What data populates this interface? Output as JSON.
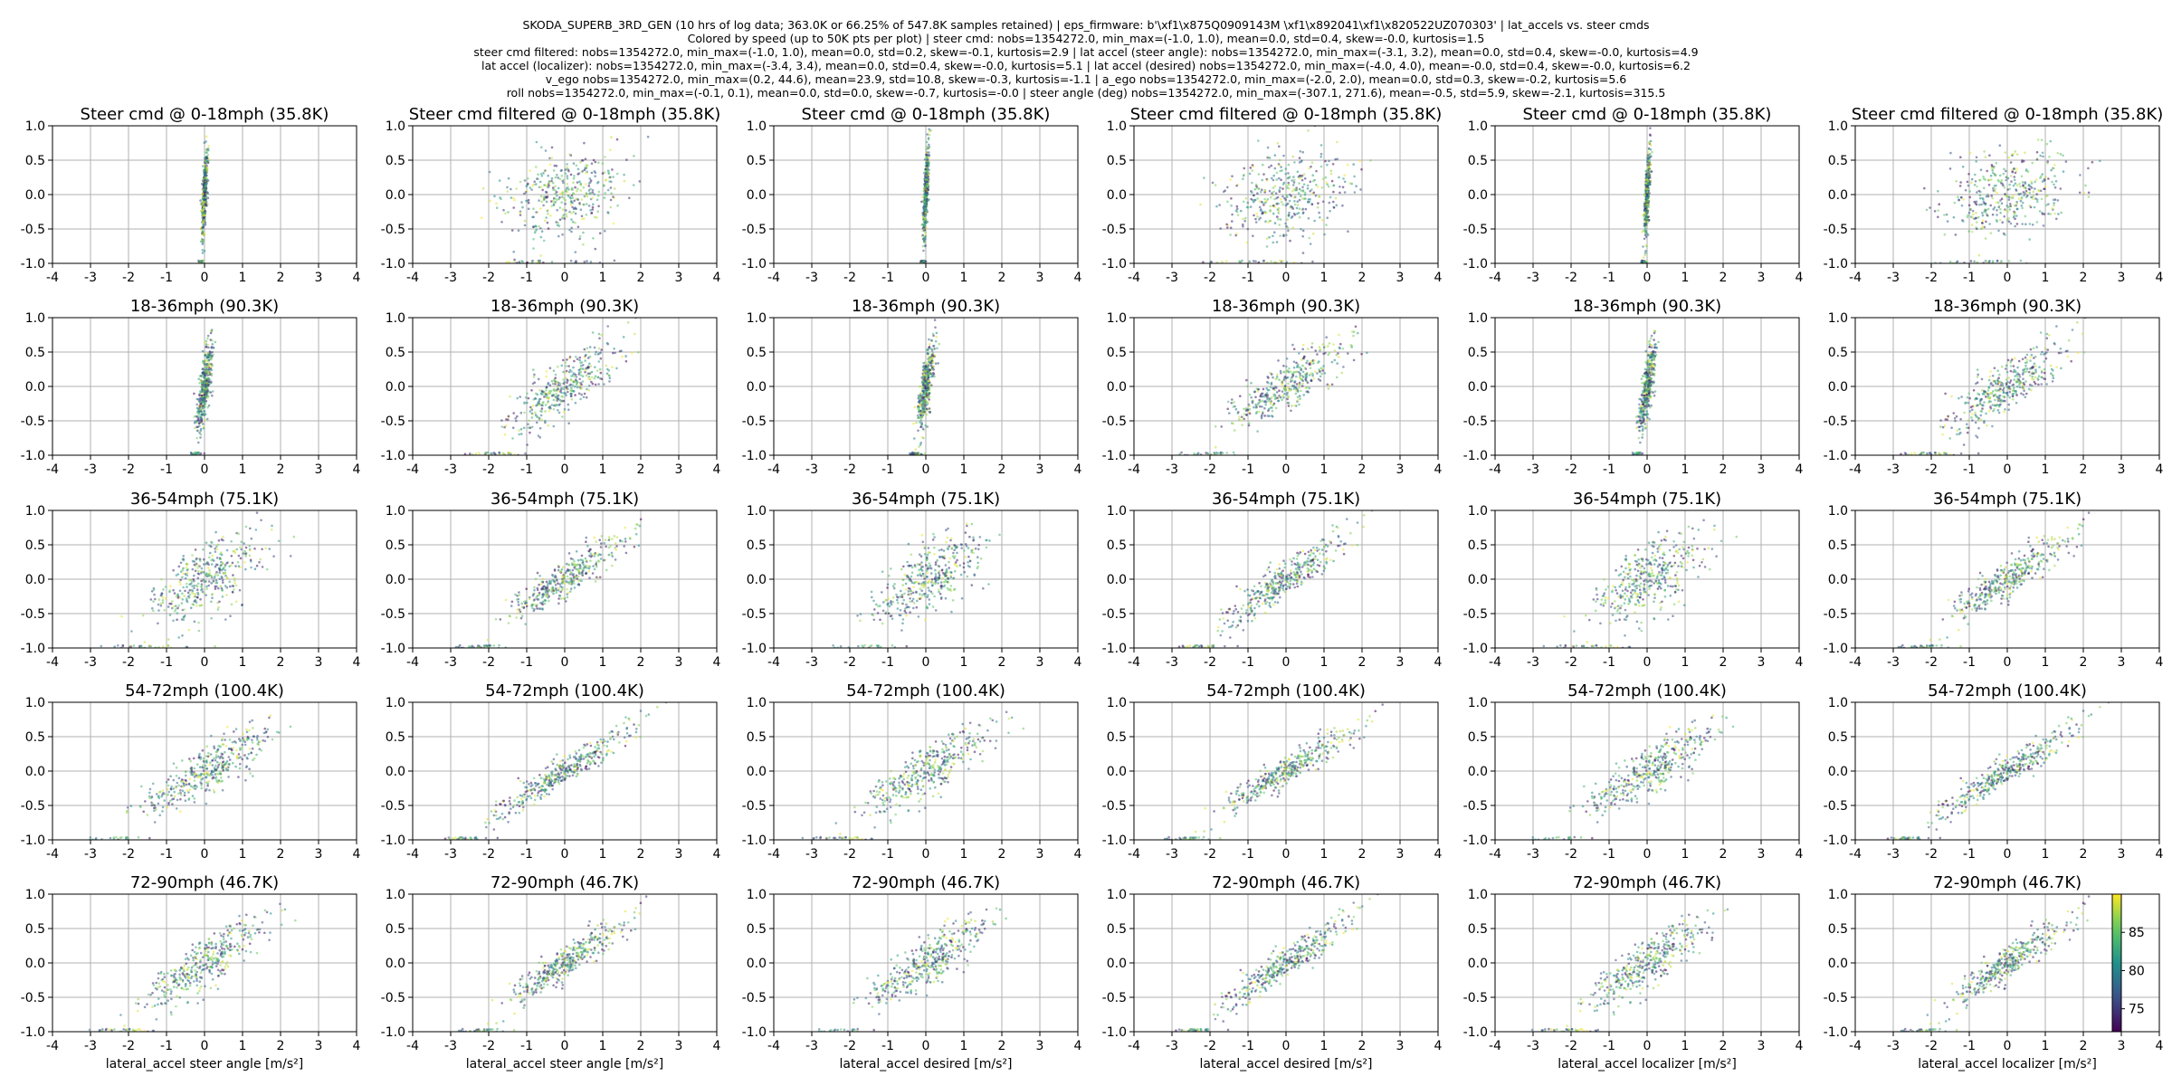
{
  "header_lines": [
    "SKODA_SUPERB_3RD_GEN (10 hrs of log data; 363.0K or 66.25% of 547.8K samples retained) | eps_firmware: b'\\xf1\\x875Q0909143M \\xf1\\x892041\\xf1\\x820522UZ070303' | lat_accels vs. steer cmds",
    "Colored by  speed (up to 50K pts per plot) | steer cmd: nobs=1354272.0, min_max=(-1.0, 1.0), mean=0.0, std=0.4, skew=-0.0, kurtosis=1.5",
    "steer cmd filtered: nobs=1354272.0, min_max=(-1.0, 1.0), mean=0.0, std=0.2, skew=-0.1, kurtosis=2.9 | lat accel (steer angle): nobs=1354272.0, min_max=(-3.1, 3.2), mean=0.0, std=0.4, skew=-0.0, kurtosis=4.9",
    "lat accel (localizer): nobs=1354272.0, min_max=(-3.4, 3.4), mean=0.0, std=0.4, skew=-0.0, kurtosis=5.1 | lat accel (desired) nobs=1354272.0, min_max=(-4.0, 4.0), mean=-0.0, std=0.4, skew=-0.0, kurtosis=6.2",
    "v_ego nobs=1354272.0, min_max=(0.2, 44.6), mean=23.9, std=10.8, skew=-0.3, kurtosis=-1.1 | a_ego nobs=1354272.0, min_max=(-2.0, 2.0), mean=0.0, std=0.3, skew=-0.2, kurtosis=5.6",
    "roll nobs=1354272.0, min_max=(-0.1, 0.1), mean=0.0, std=0.0, skew=-0.7, kurtosis=-0.0 | steer angle (deg) nobs=1354272.0, min_max=(-307.1, 271.6), mean=-0.5, std=5.9, skew=-2.1, kurtosis=315.5"
  ],
  "chart_data": {
    "type": "scatter",
    "layout": {
      "rows": 5,
      "cols": 6
    },
    "xlim": [
      -4,
      4
    ],
    "ylim": [
      -1.0,
      1.0
    ],
    "x_ticks": [
      "-4",
      "-3",
      "-2",
      "-1",
      "0",
      "1",
      "2",
      "3",
      "4"
    ],
    "y_ticks": [
      "1.0",
      "0.5",
      "0.0",
      "-0.5",
      "-1.0"
    ],
    "grid": true,
    "row_titles": [
      [
        "Steer cmd @ 0-18mph (35.8K)",
        "Steer cmd filtered @ 0-18mph (35.8K)",
        "Steer cmd @ 0-18mph (35.8K)",
        "Steer cmd filtered @ 0-18mph (35.8K)",
        "Steer cmd @ 0-18mph (35.8K)",
        "Steer cmd filtered @ 0-18mph (35.8K)"
      ],
      [
        "18-36mph (90.3K)",
        "18-36mph (90.3K)",
        "18-36mph (90.3K)",
        "18-36mph (90.3K)",
        "18-36mph (90.3K)",
        "18-36mph (90.3K)"
      ],
      [
        "36-54mph (75.1K)",
        "36-54mph (75.1K)",
        "36-54mph (75.1K)",
        "36-54mph (75.1K)",
        "36-54mph (75.1K)",
        "36-54mph (75.1K)"
      ],
      [
        "54-72mph (100.4K)",
        "54-72mph (100.4K)",
        "54-72mph (100.4K)",
        "54-72mph (100.4K)",
        "54-72mph (100.4K)",
        "54-72mph (100.4K)"
      ],
      [
        "72-90mph (46.7K)",
        "72-90mph (46.7K)",
        "72-90mph (46.7K)",
        "72-90mph (46.7K)",
        "72-90mph (46.7K)",
        "72-90mph (46.7K)"
      ]
    ],
    "xlabels": [
      "lateral_accel steer angle [m/s²]",
      "lateral_accel steer angle [m/s²]",
      "lateral_accel desired [m/s²]",
      "lateral_accel desired [m/s²]",
      "lateral_accel localizer [m/s²]",
      "lateral_accel localizer [m/s²]"
    ],
    "series_trend": [
      [
        {
          "slope": 12.0,
          "spread": 0.06
        },
        {
          "slope": 1.6,
          "spread": 0.22
        },
        {
          "slope": 12.0,
          "spread": 0.06
        },
        {
          "slope": 1.5,
          "spread": 0.22
        },
        {
          "slope": 12.0,
          "spread": 0.06
        },
        {
          "slope": 1.5,
          "spread": 0.22
        }
      ],
      [
        {
          "slope": 4.5,
          "spread": 0.15
        },
        {
          "slope": 0.55,
          "spread": 0.12
        },
        {
          "slope": 4.0,
          "spread": 0.15
        },
        {
          "slope": 0.5,
          "spread": 0.12
        },
        {
          "slope": 4.0,
          "spread": 0.15
        },
        {
          "slope": 0.5,
          "spread": 0.12
        }
      ],
      [
        {
          "slope": 0.7,
          "spread": 0.16
        },
        {
          "slope": 0.45,
          "spread": 0.09
        },
        {
          "slope": 0.7,
          "spread": 0.16
        },
        {
          "slope": 0.45,
          "spread": 0.09
        },
        {
          "slope": 0.7,
          "spread": 0.16
        },
        {
          "slope": 0.45,
          "spread": 0.09
        }
      ],
      [
        {
          "slope": 0.45,
          "spread": 0.13
        },
        {
          "slope": 0.38,
          "spread": 0.08
        },
        {
          "slope": 0.45,
          "spread": 0.13
        },
        {
          "slope": 0.38,
          "spread": 0.08
        },
        {
          "slope": 0.45,
          "spread": 0.13
        },
        {
          "slope": 0.38,
          "spread": 0.08
        }
      ],
      [
        {
          "slope": 0.48,
          "spread": 0.12
        },
        {
          "slope": 0.45,
          "spread": 0.08
        },
        {
          "slope": 0.48,
          "spread": 0.12
        },
        {
          "slope": 0.42,
          "spread": 0.08
        },
        {
          "slope": 0.48,
          "spread": 0.12
        },
        {
          "slope": 0.45,
          "spread": 0.08
        }
      ]
    ],
    "colorbar": {
      "ticks": [
        "85",
        "80",
        "75"
      ],
      "tick_values": [
        85,
        80,
        75
      ],
      "range": [
        72,
        90
      ],
      "colormap": "viridis"
    }
  }
}
